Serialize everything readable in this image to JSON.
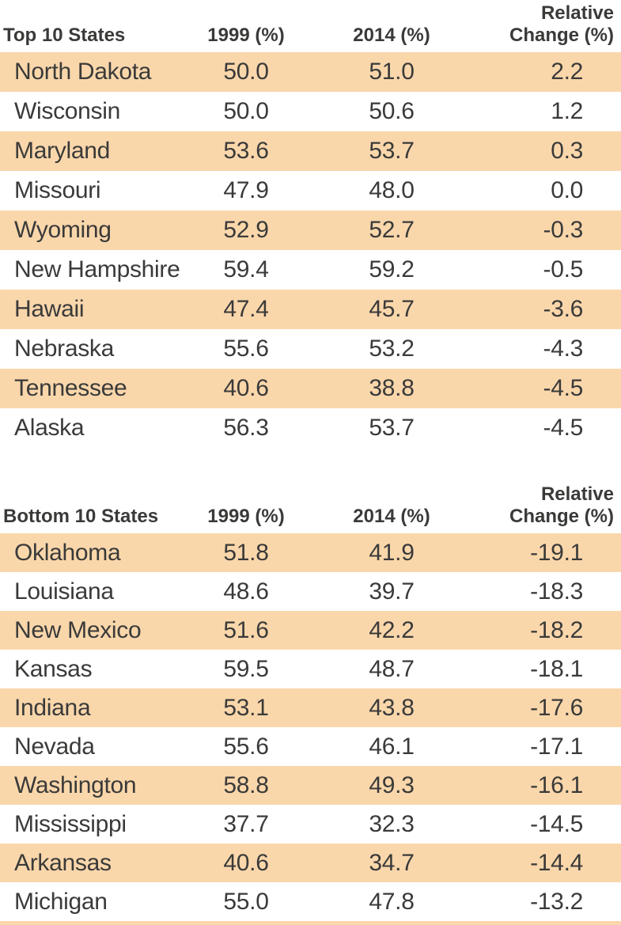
{
  "colors": {
    "row_shade": "#fad7ab",
    "text": "#3a3a39",
    "background": "#ffffff"
  },
  "tables": [
    {
      "header": {
        "label": "Top 10 States",
        "y1999": "1999 (%)",
        "y2014": "2014 (%)",
        "change_line1": "Relative",
        "change_line2": "Change (%)"
      },
      "rows": [
        {
          "state": "North Dakota",
          "y1999": "50.0",
          "y2014": "51.0",
          "change": "2.2"
        },
        {
          "state": "Wisconsin",
          "y1999": "50.0",
          "y2014": "50.6",
          "change": "1.2"
        },
        {
          "state": "Maryland",
          "y1999": "53.6",
          "y2014": "53.7",
          "change": "0.3"
        },
        {
          "state": "Missouri",
          "y1999": "47.9",
          "y2014": "48.0",
          "change": "0.0"
        },
        {
          "state": "Wyoming",
          "y1999": "52.9",
          "y2014": "52.7",
          "change": "-0.3"
        },
        {
          "state": "New Hampshire",
          "y1999": "59.4",
          "y2014": "59.2",
          "change": "-0.5"
        },
        {
          "state": "Hawaii",
          "y1999": "47.4",
          "y2014": "45.7",
          "change": "-3.6"
        },
        {
          "state": "Nebraska",
          "y1999": "55.6",
          "y2014": "53.2",
          "change": "-4.3"
        },
        {
          "state": "Tennessee",
          "y1999": "40.6",
          "y2014": "38.8",
          "change": "-4.5"
        },
        {
          "state": "Alaska",
          "y1999": "56.3",
          "y2014": "53.7",
          "change": "-4.5"
        }
      ]
    },
    {
      "header": {
        "label": "Bottom 10 States",
        "y1999": "1999 (%)",
        "y2014": "2014 (%)",
        "change_line1": "Relative",
        "change_line2": "Change (%)"
      },
      "rows": [
        {
          "state": "Oklahoma",
          "y1999": "51.8",
          "y2014": "41.9",
          "change": "-19.1"
        },
        {
          "state": "Louisiana",
          "y1999": "48.6",
          "y2014": "39.7",
          "change": "-18.3"
        },
        {
          "state": "New Mexico",
          "y1999": "51.6",
          "y2014": "42.2",
          "change": "-18.2"
        },
        {
          "state": "Kansas",
          "y1999": "59.5",
          "y2014": "48.7",
          "change": "-18.1"
        },
        {
          "state": "Indiana",
          "y1999": "53.1",
          "y2014": "43.8",
          "change": "-17.6"
        },
        {
          "state": "Nevada",
          "y1999": "55.6",
          "y2014": "46.1",
          "change": "-17.1"
        },
        {
          "state": "Washington",
          "y1999": "58.8",
          "y2014": "49.3",
          "change": "-16.1"
        },
        {
          "state": "Mississippi",
          "y1999": "37.7",
          "y2014": "32.3",
          "change": "-14.5"
        },
        {
          "state": "Arkansas",
          "y1999": "40.6",
          "y2014": "34.7",
          "change": "-14.4"
        },
        {
          "state": "Michigan",
          "y1999": "55.0",
          "y2014": "47.8",
          "change": "-13.2"
        }
      ]
    }
  ],
  "chart_data": [
    {
      "type": "table",
      "title": "Top 10 States",
      "columns": [
        "Top 10 States",
        "1999 (%)",
        "2014 (%)",
        "Relative Change (%)"
      ],
      "rows": [
        [
          "North Dakota",
          50.0,
          51.0,
          2.2
        ],
        [
          "Wisconsin",
          50.0,
          50.6,
          1.2
        ],
        [
          "Maryland",
          53.6,
          53.7,
          0.3
        ],
        [
          "Missouri",
          47.9,
          48.0,
          0.0
        ],
        [
          "Wyoming",
          52.9,
          52.7,
          -0.3
        ],
        [
          "New Hampshire",
          59.4,
          59.2,
          -0.5
        ],
        [
          "Hawaii",
          47.4,
          45.7,
          -3.6
        ],
        [
          "Nebraska",
          55.6,
          53.2,
          -4.3
        ],
        [
          "Tennessee",
          40.6,
          38.8,
          -4.5
        ],
        [
          "Alaska",
          56.3,
          53.7,
          -4.5
        ]
      ],
      "row_shading": "alternating, first row shaded"
    },
    {
      "type": "table",
      "title": "Bottom 10 States",
      "columns": [
        "Bottom 10 States",
        "1999 (%)",
        "2014 (%)",
        "Relative Change (%)"
      ],
      "rows": [
        [
          "Oklahoma",
          51.8,
          41.9,
          -19.1
        ],
        [
          "Louisiana",
          48.6,
          39.7,
          -18.3
        ],
        [
          "New Mexico",
          51.6,
          42.2,
          -18.2
        ],
        [
          "Kansas",
          59.5,
          48.7,
          -18.1
        ],
        [
          "Indiana",
          53.1,
          43.8,
          -17.6
        ],
        [
          "Nevada",
          55.6,
          46.1,
          -17.1
        ],
        [
          "Washington",
          58.8,
          49.3,
          -16.1
        ],
        [
          "Mississippi",
          37.7,
          32.3,
          -14.5
        ],
        [
          "Arkansas",
          40.6,
          34.7,
          -14.4
        ],
        [
          "Michigan",
          55.0,
          47.8,
          -13.2
        ]
      ],
      "row_shading": "alternating, first row shaded"
    }
  ]
}
